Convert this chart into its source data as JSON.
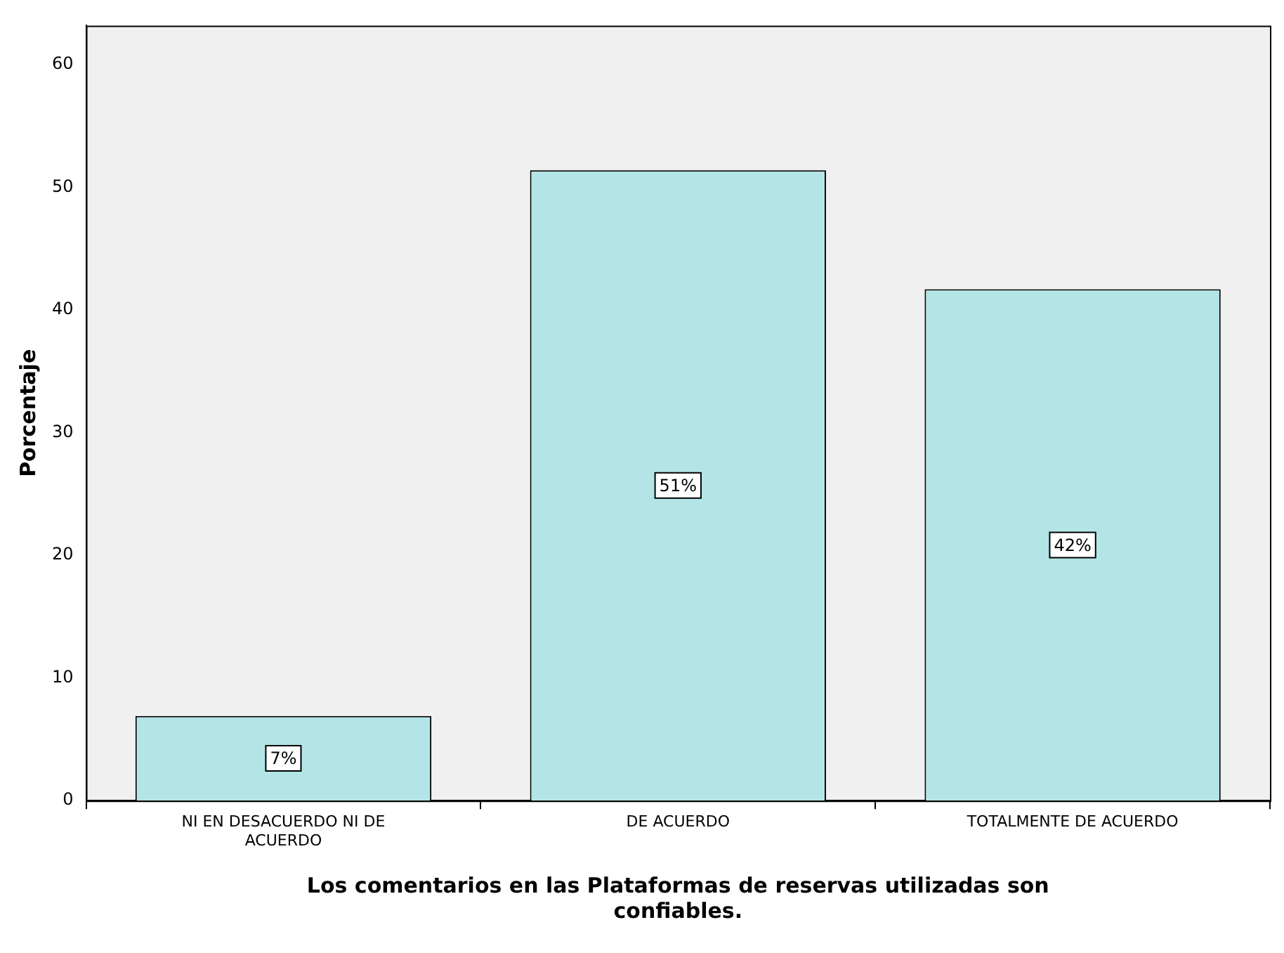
{
  "chart_data": {
    "type": "bar",
    "xlabel": "Los comentarios en las Plataformas de reservas utilizadas son confiables.",
    "ylabel": "Porcentaje",
    "categories": [
      "NI EN DESACUERDO NI DE ACUERDO",
      "DE ACUERDO",
      "TOTALMENTE DE ACUERDO"
    ],
    "values": [
      6.9,
      51.4,
      41.7
    ],
    "value_labels": [
      "7%",
      "51%",
      "42%"
    ],
    "color": "#b3e5e6",
    "ylim": [
      0,
      63.2
    ],
    "yticks": [
      0,
      10,
      20,
      30,
      40,
      50,
      60
    ],
    "grid": false,
    "legend": false
  }
}
